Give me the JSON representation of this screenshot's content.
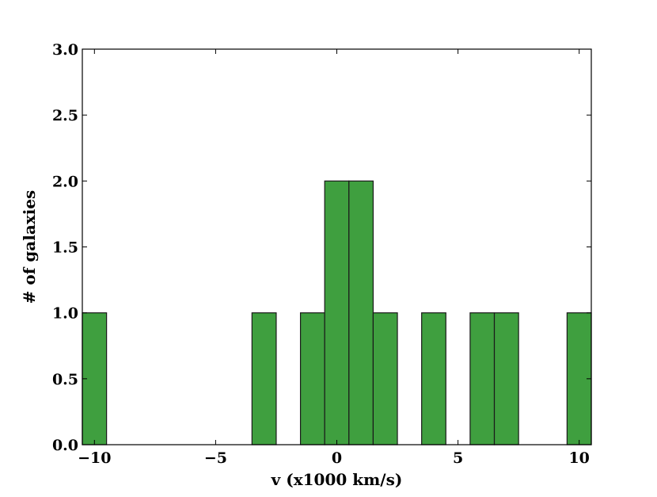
{
  "chart_data": {
    "type": "bar",
    "xlabel": "v (x1000 km/s)",
    "ylabel": "# of galaxies",
    "xlim": [
      -10.5,
      10.5
    ],
    "ylim": [
      0,
      3.0
    ],
    "xticks": [
      -10,
      -5,
      0,
      5,
      10
    ],
    "xtick_labels": [
      "−10",
      "−5",
      "0",
      "5",
      "10"
    ],
    "yticks": [
      0.0,
      0.5,
      1.0,
      1.5,
      2.0,
      2.5,
      3.0
    ],
    "ytick_labels": [
      "0.0",
      "0.5",
      "1.0",
      "1.5",
      "2.0",
      "2.5",
      "3.0"
    ],
    "bin_width": 1,
    "bins": [
      {
        "x0": -10.5,
        "x1": -9.5,
        "count": 1
      },
      {
        "x0": -3.5,
        "x1": -2.5,
        "count": 1
      },
      {
        "x0": -1.5,
        "x1": -0.5,
        "count": 1
      },
      {
        "x0": -0.5,
        "x1": 0.5,
        "count": 2
      },
      {
        "x0": 0.5,
        "x1": 1.5,
        "count": 2
      },
      {
        "x0": 1.5,
        "x1": 2.5,
        "count": 1
      },
      {
        "x0": 3.5,
        "x1": 4.5,
        "count": 1
      },
      {
        "x0": 5.5,
        "x1": 6.5,
        "count": 1
      },
      {
        "x0": 6.5,
        "x1": 7.5,
        "count": 1
      },
      {
        "x0": 9.5,
        "x1": 10.5,
        "count": 1
      }
    ],
    "bar_color": "#3f9f3f",
    "bar_edge_color": "#1a1a1a",
    "grid": false,
    "legend": "none"
  }
}
